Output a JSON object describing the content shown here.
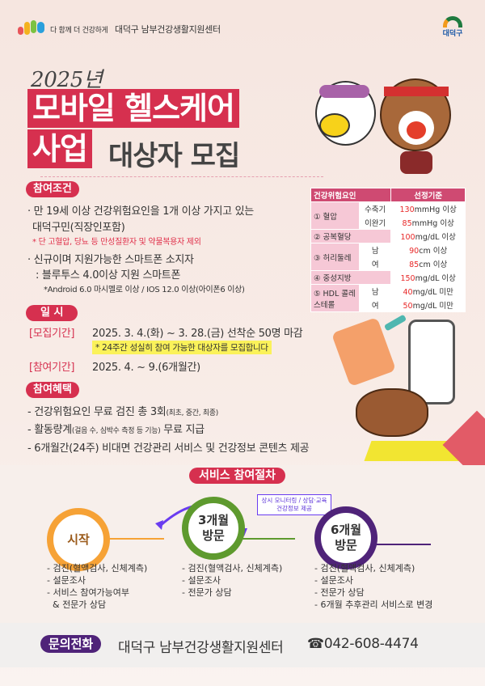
{
  "header": {
    "slogan_prefix": "다 함께 더 건강하게",
    "center_name": "대덕구 남부건강생활지원센터",
    "district_logo": "대덕구"
  },
  "title": {
    "year": "2025년",
    "line1": "모바일 헬스케어",
    "line2_highlight": "사업",
    "line2_rest": "대상자 모집"
  },
  "eligibility": {
    "label": "참여조건",
    "item1_line1": "· 만 19세 이상 건강위험요인을 1개 이상 가지고 있는",
    "item1_line2": "대덕구민(직장인포함)",
    "item1_note": "* 단 고혈압, 당뇨 등 만성질환자 및 약물복용자 제외",
    "item2_line1": "· 신규이며 지원가능한 스마트폰 소지자",
    "item2_line2": ": 블루투스 4.0이상 지원 스마트폰",
    "item2_note": "*Android 6.0 마시멜로 이상 / IOS 12.0 이상(아이폰6 이상)"
  },
  "criteria_table": {
    "headers": [
      "건강위험요인",
      "선정기준"
    ],
    "rows": [
      {
        "factor": "① 혈압",
        "sub": "수축기",
        "num": "130",
        "unit": "mmHg 이상"
      },
      {
        "sub": "이완기",
        "num": "85",
        "unit": "mmHg 이상"
      },
      {
        "factor": "② 공복혈당",
        "num": "100",
        "unit": "mg/dL 이상"
      },
      {
        "factor": "③ 허리둘레",
        "sub": "남",
        "num": "90",
        "unit": "cm 이상"
      },
      {
        "sub": "여",
        "num": "85",
        "unit": "cm 이상"
      },
      {
        "factor": "④ 중성지방",
        "num": "150",
        "unit": "mg/dL 이상"
      },
      {
        "factor": "⑤ HDL 콜레스테롤",
        "sub": "남",
        "num": "40",
        "unit": "mg/dL 미만"
      },
      {
        "sub": "여",
        "num": "50",
        "unit": "mg/dL 미만"
      }
    ]
  },
  "schedule": {
    "label": "일  시",
    "recruit_label": "[모집기간]",
    "recruit_value": "2025. 3. 4.(화) ~ 3. 28.(금) 선착순 50명 마감",
    "recruit_note": "* 24주간 성실히 참여 가능한 대상자를 모집합니다",
    "participate_label": "[참여기간]",
    "participate_value": "2025. 4. ~ 9.(6개월간)"
  },
  "benefits": {
    "label": "참여혜택",
    "b1": "- 건강위험요인 무료 검진 총 3회",
    "b1_small": "(최초, 중간, 최종)",
    "b2": "- 활동량계",
    "b2_small": "(걸음 수, 심박수 측정 등 기능)",
    "b2_rest": " 무료 지급",
    "b3": "- 6개월간(24주) 비대면 건강관리 서비스 및 건강정보 콘텐츠 제공"
  },
  "process": {
    "label": "서비스 참여절차",
    "callout": "상시 모니터링 / 상담·교육\n건강정보 제공",
    "steps": [
      {
        "title": "시작",
        "color": "#f6a236",
        "items": "- 검진(혈액검사, 신체계측)\n- 설문조사\n- 서비스 참여가능여부\n  & 전문가 상담"
      },
      {
        "title": "3개월\n방문",
        "color": "#5e9a2e",
        "items": "- 검진(혈액검사, 신체계측)\n- 설문조사\n- 전문가 상담"
      },
      {
        "title": "6개월\n방문",
        "color": "#4f2379",
        "items": "- 검진(혈액검사, 신체계측)\n- 설문조사\n- 전문가 상담\n- 6개월 추후관리 서비스로 변경"
      }
    ]
  },
  "contact": {
    "label": "문의전화",
    "org": "대덕구 남부건강생활지원센터",
    "phone": "☎042-608-4474"
  },
  "colors": {
    "accent": "#d6304f",
    "orange": "#f6a236",
    "green": "#5e9a2e",
    "purple": "#4f2379",
    "arrow": "#6a3cf0"
  }
}
